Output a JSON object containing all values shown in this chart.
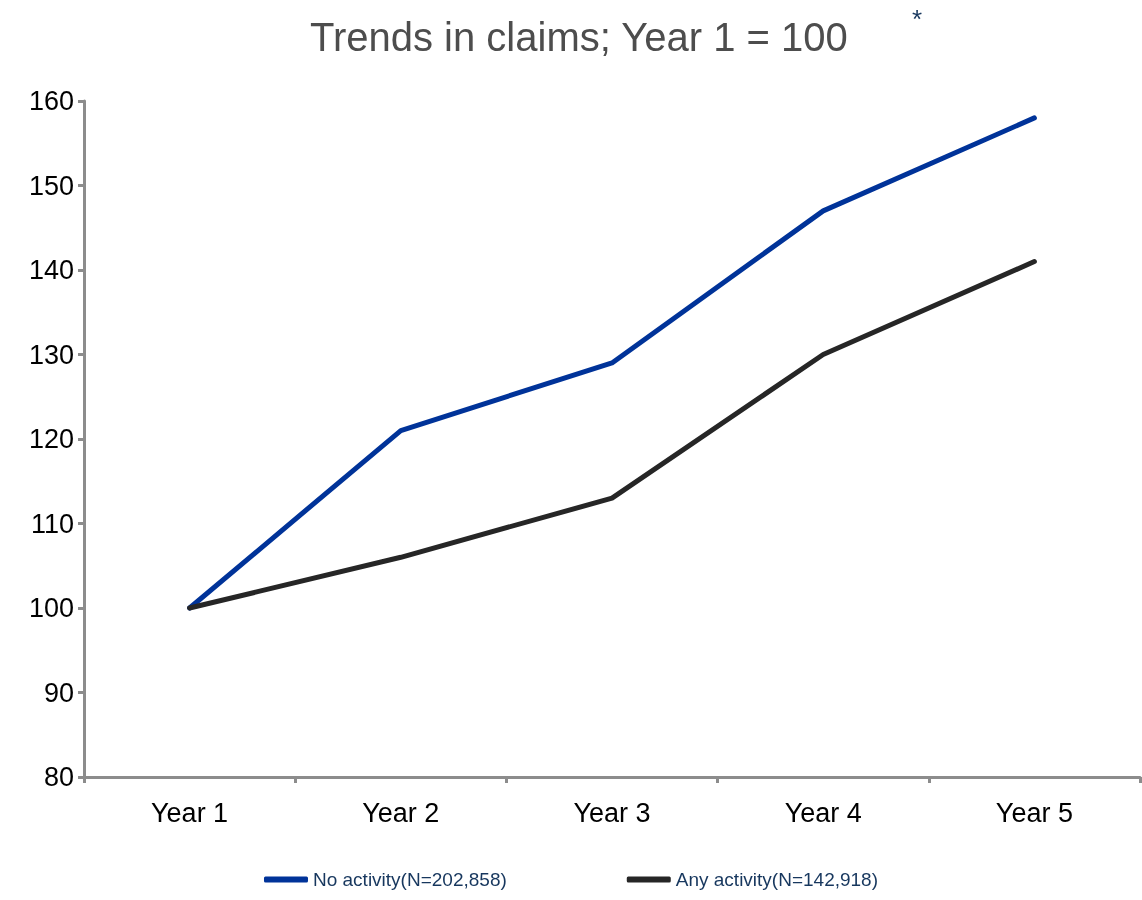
{
  "chart_data": {
    "type": "line",
    "title": "Trends in claims; Year 1 = 100",
    "annotations": [
      "*"
    ],
    "categories": [
      "Year 1",
      "Year 2",
      "Year 3",
      "Year 4",
      "Year 5"
    ],
    "series": [
      {
        "name": "No activity(N=202,858)",
        "color": "#003399",
        "values": [
          100,
          121,
          129,
          147,
          158
        ]
      },
      {
        "name": "Any activity(N=142,918)",
        "color": "#262626",
        "values": [
          100,
          106,
          113,
          130,
          141
        ]
      }
    ],
    "ylim": [
      80,
      160
    ],
    "yticks": [
      80,
      90,
      100,
      110,
      120,
      130,
      140,
      150,
      160
    ],
    "grid": false,
    "legend": "bottom",
    "marker": "none",
    "line_style": "solid"
  }
}
